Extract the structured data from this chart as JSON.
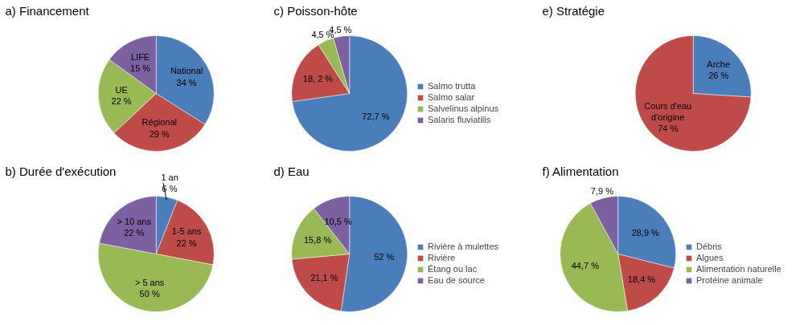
{
  "chart_data": [
    {
      "type": "pie",
      "title": "a) Financement",
      "categories": [
        "National",
        "Régional",
        "UE",
        "LIFE"
      ],
      "values": [
        34,
        29,
        22,
        15
      ],
      "colors": [
        "#4a7ebb",
        "#be4b48",
        "#98b954",
        "#7d60a0"
      ],
      "value_labels": [
        "34 %",
        "29 %",
        "22 %",
        "15 %"
      ],
      "legend": false
    },
    {
      "type": "pie",
      "title": "c) Poisson-hôte",
      "categories": [
        "Salmo trutta",
        "Salmo salar",
        "Salvelinus alpinus",
        "Salaris fluviatilis"
      ],
      "values": [
        72.7,
        18.2,
        4.5,
        4.5
      ],
      "colors": [
        "#4a7ebb",
        "#be4b48",
        "#98b954",
        "#7d60a0"
      ],
      "value_labels": [
        "72,7 %",
        "18, 2 %",
        "4,5 %",
        "4,5 %"
      ],
      "legend": "right"
    },
    {
      "type": "pie",
      "title": "e) Stratégie",
      "categories": [
        "Arche",
        "Cours d'eau d'origine"
      ],
      "values": [
        26,
        74
      ],
      "colors": [
        "#4a7ebb",
        "#be4b48"
      ],
      "value_labels": [
        "26 %",
        "74 %"
      ],
      "legend": false
    },
    {
      "type": "pie",
      "title": "b) Durée d'exécution",
      "categories": [
        "1 an",
        "1-5 ans",
        "> 5 ans",
        "> 10 ans"
      ],
      "values": [
        6,
        22,
        50,
        22
      ],
      "colors": [
        "#4a7ebb",
        "#be4b48",
        "#98b954",
        "#7d60a0"
      ],
      "value_labels": [
        "6 %",
        "22 %",
        "50 %",
        "22 %"
      ],
      "legend": false
    },
    {
      "type": "pie",
      "title": "d) Eau",
      "categories": [
        "Rivière à mulettes",
        "Rivière",
        "Étang ou lac",
        "Eau de source"
      ],
      "values": [
        52,
        21.1,
        15.8,
        10.5
      ],
      "colors": [
        "#4a7ebb",
        "#be4b48",
        "#98b954",
        "#7d60a0"
      ],
      "value_labels": [
        "52 %",
        "21,1 %",
        "15,8 %",
        "10,5 %"
      ],
      "legend": "right"
    },
    {
      "type": "pie",
      "title": "f) Alimentation",
      "categories": [
        "Débris",
        "Algues",
        "Alimentation naturelle",
        "Protéine animale"
      ],
      "values": [
        28.9,
        18.4,
        44.7,
        7.9
      ],
      "colors": [
        "#4a7ebb",
        "#be4b48",
        "#98b954",
        "#7d60a0"
      ],
      "value_labels": [
        "28,9 %",
        "18,4 %",
        "44,7 %",
        "7,9 %"
      ],
      "legend": "right"
    }
  ]
}
